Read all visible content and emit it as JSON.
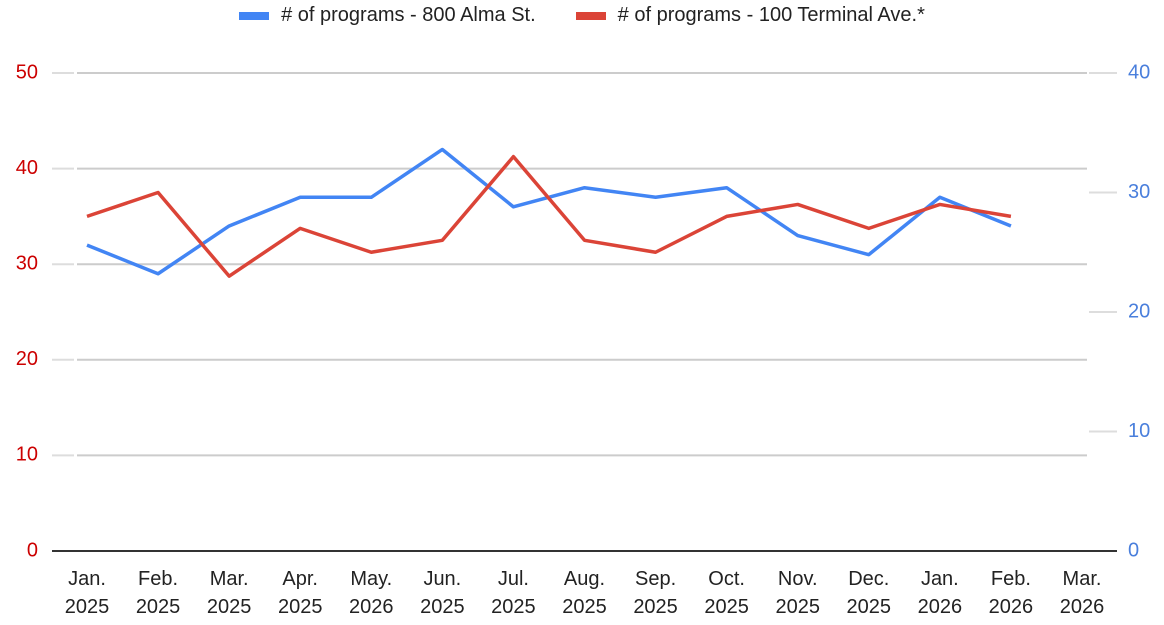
{
  "chart_data": {
    "type": "line",
    "categories": [
      "Jan. 2025",
      "Feb. 2025",
      "Mar. 2025",
      "Apr. 2025",
      "May. 2026",
      "Jun. 2025",
      "Jul. 2025",
      "Aug. 2025",
      "Sep. 2025",
      "Oct. 2025",
      "Nov. 2025",
      "Dec. 2025",
      "Jan. 2026",
      "Feb. 2026",
      "Mar. 2026"
    ],
    "series": [
      {
        "name": "# of programs - 800 Alma St.",
        "color": "#4285f4",
        "axis": "y",
        "values": [
          32,
          29,
          34,
          37,
          37,
          42,
          36,
          38,
          37,
          38,
          33,
          31,
          37,
          34,
          null
        ]
      },
      {
        "name": "# of programs - 100 Terminal Ave.*",
        "color": "#db4437",
        "axis": "y2",
        "values": [
          28,
          30,
          23,
          27,
          25,
          26,
          33,
          26,
          25,
          28,
          29,
          27,
          29,
          28,
          null
        ]
      }
    ],
    "ylim": [
      0,
      50
    ],
    "yticks": [
      0,
      10,
      20,
      30,
      40,
      50
    ],
    "ytick_color": "#cc0000",
    "y2lim": [
      0,
      40
    ],
    "y2ticks": [
      0,
      10,
      20,
      30,
      40
    ],
    "y2tick_color": "#4a7fdc",
    "grid": true,
    "legend": "top"
  }
}
